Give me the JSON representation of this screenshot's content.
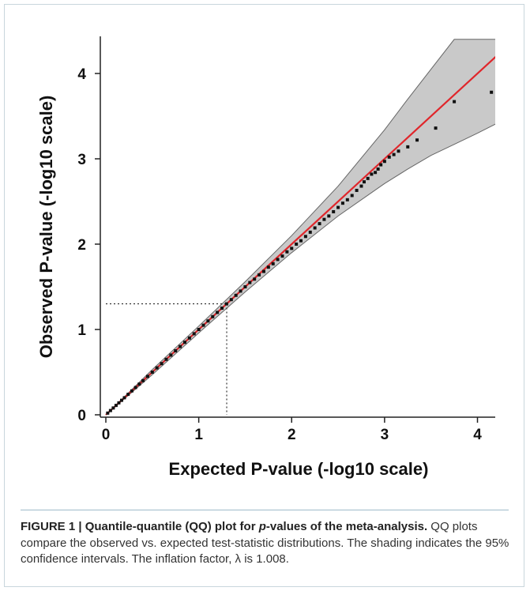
{
  "chart_data": {
    "type": "scatter",
    "xlabel": "Expected P-value (-log10 scale)",
    "ylabel": "Observed P-value (-log10 scale)",
    "xlim": [
      0,
      4.4
    ],
    "ylim": [
      0,
      4.4
    ],
    "x_ticks": [
      "0",
      "1",
      "2",
      "3",
      "4"
    ],
    "y_ticks": [
      "0",
      "1",
      "2",
      "3",
      "4"
    ],
    "grid": false,
    "reference_line": {
      "label": "y = x",
      "color": "#e0262b"
    },
    "threshold": {
      "x": 1.301,
      "y": 1.301
    },
    "confidence_band": {
      "x": [
        0,
        0.5,
        1,
        1.5,
        2,
        2.5,
        3,
        3.25,
        3.5,
        3.75,
        4,
        4.2,
        4.4
      ],
      "lower": [
        0,
        0.47,
        0.96,
        1.44,
        1.9,
        2.33,
        2.71,
        2.88,
        3.04,
        3.17,
        3.3,
        3.41,
        3.52
      ],
      "upper": [
        0,
        0.53,
        1.04,
        1.56,
        2.1,
        2.68,
        3.34,
        3.7,
        4.05,
        4.4,
        4.4,
        4.4,
        4.4
      ]
    },
    "points": {
      "x": [
        0.02,
        0.05,
        0.08,
        0.11,
        0.14,
        0.17,
        0.2,
        0.24,
        0.28,
        0.32,
        0.36,
        0.4,
        0.45,
        0.5,
        0.55,
        0.6,
        0.65,
        0.7,
        0.75,
        0.8,
        0.85,
        0.9,
        0.95,
        1.0,
        1.05,
        1.1,
        1.15,
        1.2,
        1.25,
        1.3,
        1.35,
        1.4,
        1.45,
        1.5,
        1.55,
        1.6,
        1.65,
        1.7,
        1.75,
        1.8,
        1.85,
        1.9,
        1.95,
        2.0,
        2.05,
        2.1,
        2.15,
        2.2,
        2.25,
        2.3,
        2.35,
        2.4,
        2.45,
        2.5,
        2.55,
        2.6,
        2.65,
        2.7,
        2.75,
        2.78,
        2.82,
        2.86,
        2.9,
        2.93,
        2.96,
        3.0,
        3.05,
        3.1,
        3.15,
        3.25,
        3.35,
        3.55,
        3.75,
        4.15
      ],
      "y": [
        0.02,
        0.05,
        0.08,
        0.11,
        0.14,
        0.17,
        0.2,
        0.24,
        0.28,
        0.32,
        0.36,
        0.4,
        0.45,
        0.5,
        0.55,
        0.6,
        0.65,
        0.7,
        0.75,
        0.8,
        0.85,
        0.9,
        0.95,
        1.0,
        1.05,
        1.1,
        1.15,
        1.2,
        1.25,
        1.3,
        1.35,
        1.4,
        1.45,
        1.5,
        1.55,
        1.59,
        1.64,
        1.68,
        1.73,
        1.77,
        1.82,
        1.86,
        1.91,
        1.95,
        2.0,
        2.04,
        2.09,
        2.14,
        2.19,
        2.24,
        2.29,
        2.33,
        2.38,
        2.43,
        2.48,
        2.52,
        2.57,
        2.63,
        2.68,
        2.73,
        2.77,
        2.82,
        2.84,
        2.88,
        2.93,
        2.97,
        3.02,
        3.05,
        3.09,
        3.14,
        3.22,
        3.36,
        3.67,
        3.78
      ]
    }
  },
  "caption": {
    "label": "FIGURE 1 | ",
    "title_before": "Quantile-quantile (QQ) plot for ",
    "title_italic": "p",
    "title_after": "-values of the meta-analysis.",
    "body": " QQ plots compare the observed vs. expected test-statistic distributions. The shading indicates the 95% confidence intervals. The inflation factor, λ is 1.008."
  }
}
